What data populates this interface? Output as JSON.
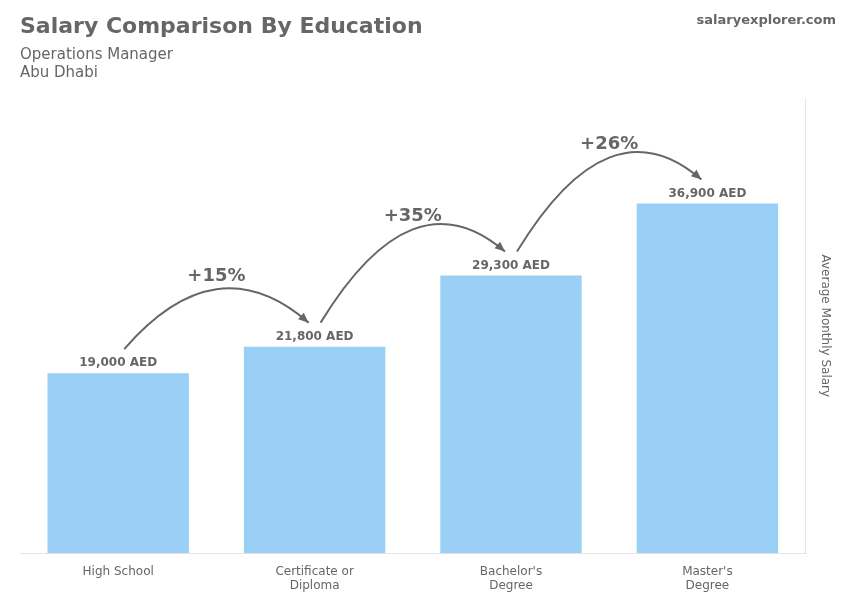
{
  "chart_data": {
    "type": "bar",
    "title": "Salary Comparison By Education",
    "subtitle": [
      "Operations Manager",
      "Abu Dhabi"
    ],
    "watermark": "salaryexplorer.com",
    "ylabel": "Average Monthly Salary",
    "categories": [
      "High School",
      "Certificate or\nDiploma",
      "Bachelor's\nDegree",
      "Master's\nDegree"
    ],
    "values": [
      19000,
      21800,
      29300,
      36900
    ],
    "value_labels": [
      "19,000 AED",
      "21,800 AED",
      "29,300 AED",
      "36,900 AED"
    ],
    "data_labels": true,
    "annotations": [
      "+15%",
      "+35%",
      "+26%"
    ],
    "ylim": [
      0,
      48000
    ],
    "grid": false,
    "legend": false,
    "tick_labels": "x"
  }
}
